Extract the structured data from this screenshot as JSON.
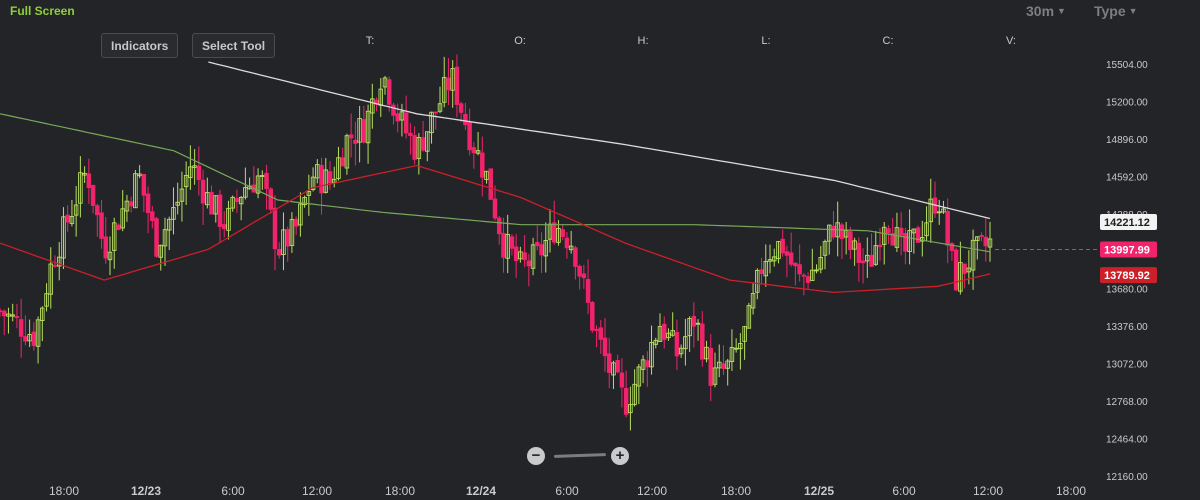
{
  "toolbar": {
    "full_screen": "Full Screen",
    "interval": "30m",
    "type": "Type",
    "indicators": "Indicators",
    "select_tool": "Select Tool"
  },
  "ohlc_labels": [
    "T:",
    "O:",
    "H:",
    "L:",
    "C:",
    "V:"
  ],
  "colors": {
    "background": "#232427",
    "up": "#b8e05f",
    "down": "#f0236b",
    "ma_white": "#dcdcdc",
    "ma_green": "#78a85a",
    "ma_red": "#cc2029",
    "accent_green": "#8fcf3a"
  },
  "chart_data": {
    "type": "candlestick",
    "y_ticks": [
      "15504.00",
      "15200.00",
      "14896.00",
      "14592.00",
      "14288.00",
      "13680.00",
      "13376.00",
      "13072.00",
      "12768.00",
      "12464.00",
      "12160.00"
    ],
    "x_ticks": [
      "18:00",
      "12/23",
      "6:00",
      "12:00",
      "18:00",
      "12/24",
      "6:00",
      "12:00",
      "18:00",
      "12/25",
      "6:00",
      "12:00",
      "18:00"
    ],
    "price_labels": {
      "white_ma": "14221.12",
      "last_price": "13997.99",
      "red_ma": "13789.92"
    },
    "ylim": [
      12160,
      15700
    ],
    "close_path": [
      [
        0,
        13500
      ],
      [
        2,
        13300
      ],
      [
        3,
        13900
      ],
      [
        5,
        14650
      ],
      [
        6,
        14000
      ],
      [
        8,
        14600
      ],
      [
        9,
        14050
      ],
      [
        10,
        14300
      ],
      [
        11,
        14700
      ],
      [
        12,
        14400
      ],
      [
        13,
        14200
      ],
      [
        14,
        14500
      ],
      [
        15,
        14600
      ],
      [
        16,
        14000
      ],
      [
        17,
        14150
      ],
      [
        18,
        14600
      ],
      [
        19,
        14550
      ],
      [
        20,
        14900
      ],
      [
        21,
        15000
      ],
      [
        22,
        15450
      ],
      [
        23,
        15050
      ],
      [
        24,
        14800
      ],
      [
        25,
        15100
      ],
      [
        26,
        15400
      ],
      [
        27,
        14950
      ],
      [
        28,
        14600
      ],
      [
        29,
        14050
      ],
      [
        30,
        13850
      ],
      [
        31,
        13950
      ],
      [
        32,
        14200
      ],
      [
        33,
        14050
      ],
      [
        34,
        13450
      ],
      [
        35,
        13050
      ],
      [
        36,
        12750
      ],
      [
        37,
        13050
      ],
      [
        38,
        13400
      ],
      [
        39,
        13150
      ],
      [
        40,
        13450
      ],
      [
        41,
        12950
      ],
      [
        42,
        13050
      ],
      [
        43,
        13350
      ],
      [
        44,
        13950
      ],
      [
        45,
        14050
      ],
      [
        46,
        13750
      ],
      [
        47,
        13850
      ],
      [
        48,
        14200
      ],
      [
        49,
        14000
      ],
      [
        50,
        13850
      ],
      [
        51,
        14300
      ],
      [
        52,
        13950
      ],
      [
        53,
        14150
      ],
      [
        54,
        14450
      ],
      [
        55,
        13750
      ],
      [
        56,
        13950
      ],
      [
        57,
        14050
      ]
    ],
    "candle_count": 235,
    "ma_white": [
      [
        0,
        15680
      ],
      [
        12,
        15520
      ],
      [
        24,
        15100
      ],
      [
        36,
        14850
      ],
      [
        48,
        14560
      ],
      [
        57,
        14250
      ]
    ],
    "ma_green": [
      [
        0,
        15100
      ],
      [
        10,
        14800
      ],
      [
        16,
        14400
      ],
      [
        22,
        14300
      ],
      [
        30,
        14200
      ],
      [
        40,
        14200
      ],
      [
        50,
        14150
      ],
      [
        57,
        13980
      ]
    ],
    "ma_red": [
      [
        0,
        14050
      ],
      [
        6,
        13750
      ],
      [
        12,
        14000
      ],
      [
        18,
        14500
      ],
      [
        24,
        14680
      ],
      [
        30,
        14420
      ],
      [
        36,
        14050
      ],
      [
        42,
        13750
      ],
      [
        48,
        13650
      ],
      [
        54,
        13700
      ],
      [
        57,
        13800
      ]
    ]
  }
}
